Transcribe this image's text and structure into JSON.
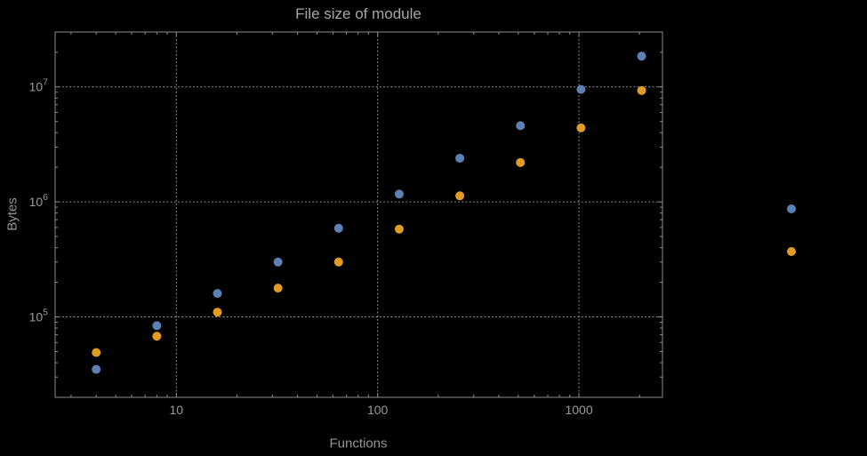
{
  "chart_data": {
    "type": "scatter",
    "title": "File size of module",
    "xlabel": "Functions",
    "ylabel": "Bytes",
    "x_scale": "log",
    "y_scale": "log",
    "xlim": [
      2.5,
      2600
    ],
    "ylim": [
      20000,
      30000000
    ],
    "x_ticks": [
      10,
      100,
      1000
    ],
    "x_tick_labels": [
      "10",
      "100",
      "1000"
    ],
    "y_ticks": [
      100000,
      1000000,
      10000000
    ],
    "y_tick_exponents": [
      5,
      6,
      7
    ],
    "grid": "dotted-major",
    "x": [
      4,
      8,
      16,
      32,
      64,
      128,
      256,
      512,
      1024,
      2048
    ],
    "series": [
      {
        "name": "series-blue",
        "color": "#5e81b5",
        "values": [
          35000,
          84000,
          160000,
          300000,
          590000,
          1170000,
          2400000,
          4600000,
          9500000,
          18500000
        ]
      },
      {
        "name": "series-orange",
        "color": "#e19c24",
        "values": [
          49000,
          68000,
          110000,
          178000,
          300000,
          580000,
          1130000,
          2200000,
          4400000,
          9300000
        ]
      }
    ],
    "legend": {
      "position": "right-outside",
      "entries": [
        {
          "color": "#5e81b5"
        },
        {
          "color": "#e19c24"
        }
      ]
    },
    "colors": {
      "background": "#000000",
      "frame": "#8c8c8c",
      "grid": "#9e9e9e",
      "text": "#9a9a9a",
      "title": "#a6a6a6"
    }
  }
}
